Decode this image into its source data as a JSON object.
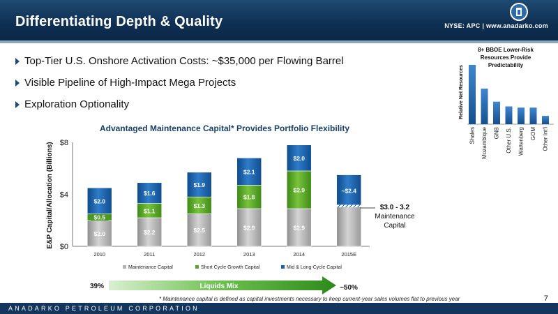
{
  "slide": {
    "title": "Differentiating Depth & Quality",
    "ticker": "NYSE: APC | www.anadarko.com",
    "bullets": [
      "Top-Tier U.S. Onshore Activation Costs: ~$35,000 per Flowing Barrel",
      "Visible Pipeline of High-Impact Mega Projects",
      "Exploration Optionality"
    ],
    "footer_company": "ANADARKO PETROLEUM CORPORATION",
    "footnote": "* Maintenance capital is defined as capital investments necessary to keep current-year sales volumes flat to previous year",
    "page_number": "7",
    "colors": {
      "header": "#0f2f52",
      "maintenance": "#b2b2b2",
      "short_cycle": "#5aa52a",
      "mid_long": "#1b5fa7",
      "mix_arrow": "#2f8f1f"
    }
  },
  "chart_data": [
    {
      "type": "bar",
      "stacked": true,
      "title": "Advantaged Maintenance Capital* Provides Portfolio Flexibility",
      "ylabel": "E&P Capital/Allocation (Billions)",
      "xlabel": "",
      "ylim": [
        0,
        8
      ],
      "yticks": [
        "$0",
        "$4",
        "$8"
      ],
      "categories": [
        "2010",
        "2011",
        "2012",
        "2013",
        "2014",
        "2015E"
      ],
      "series": [
        {
          "name": "Maintenance Capital",
          "values": [
            2.0,
            2.2,
            2.5,
            2.9,
            2.9,
            3.1
          ],
          "labels": [
            "$2.0",
            "$2.2",
            "$2.5",
            "$2.9",
            "$2.9",
            ""
          ]
        },
        {
          "name": "Short Cycle Growth Capital",
          "values": [
            0.5,
            1.1,
            1.3,
            1.8,
            2.9,
            0.0
          ],
          "labels": [
            "$0.5",
            "$1.1",
            "$1.3",
            "$1.8",
            "$2.9",
            ""
          ]
        },
        {
          "name": "Mid & Long-Cycle Capital",
          "values": [
            2.0,
            1.6,
            1.9,
            2.1,
            2.0,
            2.4
          ],
          "labels": [
            "$2.0",
            "$1.6",
            "$1.9",
            "$2.1",
            "$2.0",
            "~$2.4"
          ]
        }
      ],
      "range_band": {
        "low": 3.0,
        "high": 3.2,
        "category": "2015E"
      },
      "annotation": {
        "line1": "$3.0 - 3.2",
        "line2": "Maintenance",
        "line3": "Capital"
      },
      "legend_position": "bottom",
      "grid": false,
      "liquids_mix": {
        "label": "Liquids Mix",
        "start": "39%",
        "end": "~50%"
      }
    },
    {
      "type": "bar",
      "title": "8+ BBOE Lower-Risk Resources Provide Predictability",
      "title_lines": [
        "8+ BBOE Lower-Risk",
        "Resources Provide",
        "Predictability"
      ],
      "ylabel": "Relative Net Resources",
      "xlabel": "",
      "categories": [
        "Shales",
        "Mozambique",
        "GNB",
        "Other U.S.",
        "Wattenberg",
        "GOM",
        "Other Int'l"
      ],
      "values": [
        100,
        60,
        38,
        30,
        28,
        28,
        14
      ],
      "ylim": [
        0,
        100
      ],
      "grid": false
    }
  ]
}
